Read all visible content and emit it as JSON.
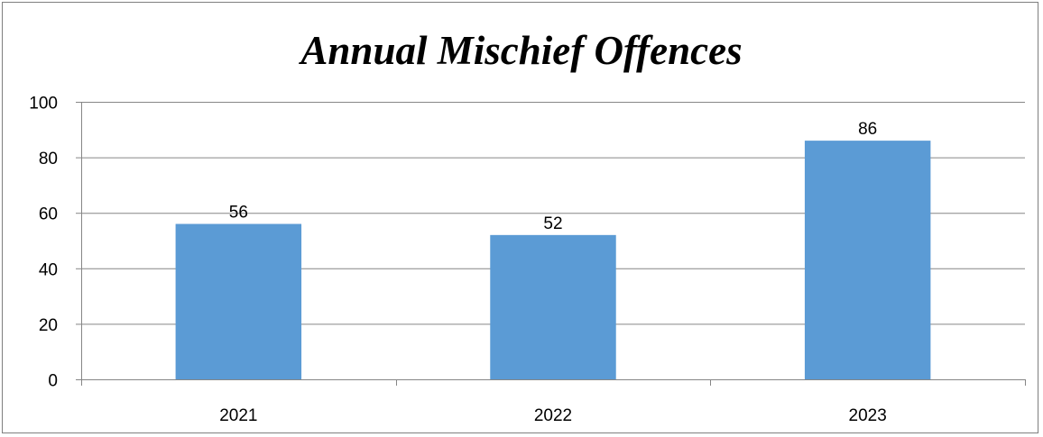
{
  "chart_data": {
    "type": "bar",
    "title": "Annual Mischief Offences",
    "categories": [
      "2021",
      "2022",
      "2023"
    ],
    "values": [
      56,
      52,
      86
    ],
    "data_labels": [
      "56",
      "52",
      "86"
    ],
    "xlabel": "",
    "ylabel": "",
    "ylim": [
      0,
      100
    ],
    "yticks": [
      0,
      20,
      40,
      60,
      80,
      100
    ],
    "ytick_labels": [
      "0",
      "20",
      "40",
      "60",
      "80",
      "100"
    ],
    "grid": true,
    "legend": "none",
    "bar_color": "#5b9bd5",
    "grid_color": "#868686"
  }
}
